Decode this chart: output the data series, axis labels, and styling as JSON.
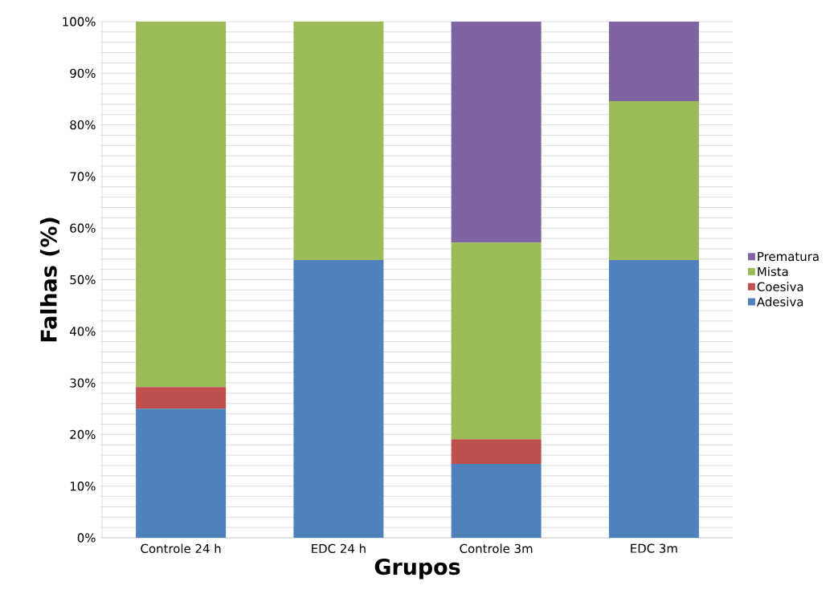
{
  "chart_data": {
    "type": "bar",
    "stacked": true,
    "xlabel": "Grupos",
    "ylabel": "Falhas (%)",
    "categories": [
      "Controle 24 h",
      "EDC 24 h",
      "Controle 3m",
      "EDC 3m"
    ],
    "series": [
      {
        "name": "Adesiva",
        "color": "#4f81bd",
        "values": [
          25,
          53.8,
          14.3,
          53.8
        ]
      },
      {
        "name": "Coesiva",
        "color": "#c0504d",
        "values": [
          4.2,
          null,
          4.8,
          null
        ]
      },
      {
        "name": "Mista",
        "color": "#9bbb59",
        "values": [
          70.8,
          46.2,
          38.1,
          30.8
        ]
      },
      {
        "name": "Prematura",
        "color": "#8064a2",
        "values": [
          null,
          null,
          42.9,
          15.4
        ]
      }
    ],
    "ylim": [
      0,
      100
    ],
    "yticks": [
      {
        "value": 0,
        "label": "0%"
      },
      {
        "value": 2,
        "label": null
      },
      {
        "value": 4,
        "label": null
      },
      {
        "value": 6,
        "label": null
      },
      {
        "value": 8,
        "label": null
      },
      {
        "value": 10,
        "label": "10%"
      },
      {
        "value": 12,
        "label": null
      },
      {
        "value": 14,
        "label": null
      },
      {
        "value": 16,
        "label": null
      },
      {
        "value": 18,
        "label": null
      },
      {
        "value": 20,
        "label": "20%"
      },
      {
        "value": 22,
        "label": null
      },
      {
        "value": 24,
        "label": null
      },
      {
        "value": 26,
        "label": null
      },
      {
        "value": 28,
        "label": null
      },
      {
        "value": 30,
        "label": "30%"
      },
      {
        "value": 32,
        "label": null
      },
      {
        "value": 34,
        "label": null
      },
      {
        "value": 36,
        "label": null
      },
      {
        "value": 38,
        "label": null
      },
      {
        "value": 40,
        "label": "40%"
      },
      {
        "value": 42,
        "label": null
      },
      {
        "value": 44,
        "label": null
      },
      {
        "value": 46,
        "label": null
      },
      {
        "value": 48,
        "label": null
      },
      {
        "value": 50,
        "label": "50%"
      },
      {
        "value": 52,
        "label": null
      },
      {
        "value": 54,
        "label": null
      },
      {
        "value": 56,
        "label": null
      },
      {
        "value": 58,
        "label": null
      },
      {
        "value": 60,
        "label": "60%"
      },
      {
        "value": 62,
        "label": null
      },
      {
        "value": 64,
        "label": null
      },
      {
        "value": 66,
        "label": null
      },
      {
        "value": 68,
        "label": null
      },
      {
        "value": 70,
        "label": "70%"
      },
      {
        "value": 72,
        "label": null
      },
      {
        "value": 74,
        "label": null
      },
      {
        "value": 76,
        "label": null
      },
      {
        "value": 78,
        "label": null
      },
      {
        "value": 80,
        "label": "80%"
      },
      {
        "value": 82,
        "label": null
      },
      {
        "value": 84,
        "label": null
      },
      {
        "value": 86,
        "label": null
      },
      {
        "value": 88,
        "label": null
      },
      {
        "value": 90,
        "label": "90%"
      },
      {
        "value": 92,
        "label": null
      },
      {
        "value": 94,
        "label": null
      },
      {
        "value": 96,
        "label": null
      },
      {
        "value": 98,
        "label": null
      },
      {
        "value": 100,
        "label": "100%"
      }
    ],
    "grid": "y",
    "legend": "right"
  }
}
